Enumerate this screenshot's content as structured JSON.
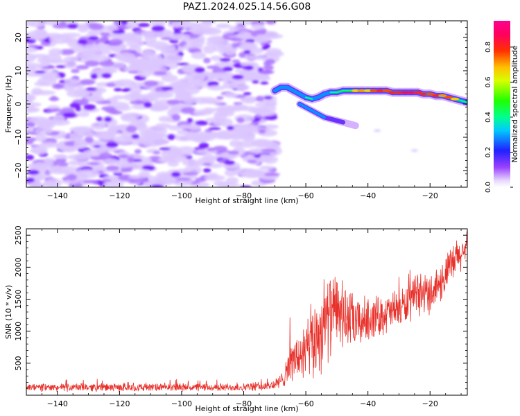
{
  "title": "PAZ1.2024.025.14.56.G08",
  "chart_data": [
    {
      "type": "heatmap",
      "xlabel": "Height of straight line (km)",
      "ylabel": "Frequency (Hz)",
      "xlim": [
        -150,
        -8
      ],
      "ylim": [
        -25,
        25
      ],
      "xticks": [
        -140,
        -120,
        -100,
        -80,
        -60,
        -40,
        -20
      ],
      "yticks": [
        -20,
        -10,
        0,
        10,
        20
      ],
      "noise_region": {
        "x": [
          -150,
          -70
        ],
        "y": [
          -25,
          25
        ],
        "level": 0.1
      },
      "ridge_x": [
        -70,
        -68,
        -66,
        -64,
        -62,
        -60,
        -58,
        -56,
        -54,
        -52,
        -50,
        -48,
        -46,
        -44,
        -42,
        -40,
        -38,
        -36,
        -34,
        -32,
        -30,
        -28,
        -26,
        -24,
        -22,
        -20,
        -18,
        -16,
        -14,
        -12,
        -10,
        -8
      ],
      "ridge_freq": [
        4,
        5,
        5,
        4,
        3,
        2,
        1.5,
        2,
        3,
        3.5,
        3.5,
        4,
        4,
        4,
        4,
        4,
        4,
        4,
        4,
        3.5,
        3.5,
        3.5,
        3.5,
        3.5,
        3,
        3,
        2.5,
        2.5,
        2,
        1.5,
        1,
        0.5
      ],
      "ridge_amplitude": [
        0.3,
        0.5,
        0.45,
        0.35,
        0.4,
        0.5,
        0.5,
        0.45,
        0.45,
        0.5,
        0.55,
        0.55,
        0.6,
        0.7,
        0.75,
        0.7,
        0.8,
        0.85,
        0.8,
        0.85,
        0.85,
        0.9,
        0.9,
        0.85,
        0.85,
        0.8,
        0.85,
        0.75,
        0.8,
        0.7,
        0.6,
        0.5
      ],
      "branch_x": [
        -62,
        -60,
        -58,
        -56,
        -54,
        -52,
        -50,
        -48,
        -46,
        -44
      ],
      "branch_freq": [
        0,
        -1,
        -2,
        -3,
        -4,
        -4.5,
        -5,
        -5.5,
        -6,
        -6.5
      ],
      "branch_amplitude": [
        0.5,
        0.45,
        0.4,
        0.35,
        0.3,
        0.25,
        0.25,
        0.2,
        0.15,
        0.1
      ],
      "colorbar": {
        "label": "Normalized spectral amplitude",
        "range": [
          0,
          0.95
        ],
        "ticks": [
          0.0,
          0.2,
          0.4,
          0.6,
          0.8
        ],
        "colormap": "gist_rainbow_r (white-purple-blue-cyan-green-yellow-red-pink)"
      }
    },
    {
      "type": "line",
      "xlabel": "Height of straight line (km)",
      "ylabel": "SNR (10 * v/v)",
      "xlim": [
        -150,
        -8
      ],
      "ylim": [
        0,
        2600
      ],
      "xticks": [
        -140,
        -120,
        -100,
        -80,
        -60,
        -40,
        -20
      ],
      "yticks": [
        500,
        1000,
        1500,
        2000,
        2500
      ],
      "series": [
        {
          "color": "#e8302a",
          "x": [
            -150,
            -140,
            -130,
            -120,
            -110,
            -100,
            -90,
            -80,
            -72,
            -68,
            -66,
            -64,
            -62,
            -60,
            -58,
            -56,
            -54,
            -52,
            -50,
            -48,
            -46,
            -44,
            -42,
            -40,
            -36,
            -32,
            -28,
            -24,
            -20,
            -16,
            -12,
            -8
          ],
          "mean": [
            120,
            120,
            125,
            120,
            120,
            125,
            120,
            125,
            140,
            200,
            450,
            550,
            600,
            650,
            800,
            950,
            1150,
            1250,
            1300,
            1250,
            1200,
            1100,
            1150,
            1200,
            1250,
            1300,
            1400,
            1550,
            1600,
            1800,
            2100,
            2300
          ],
          "spread": [
            60,
            60,
            60,
            60,
            60,
            60,
            60,
            60,
            70,
            120,
            250,
            300,
            400,
            500,
            600,
            650,
            650,
            600,
            550,
            500,
            450,
            400,
            350,
            350,
            300,
            300,
            300,
            300,
            300,
            300,
            300,
            250
          ]
        }
      ]
    }
  ]
}
